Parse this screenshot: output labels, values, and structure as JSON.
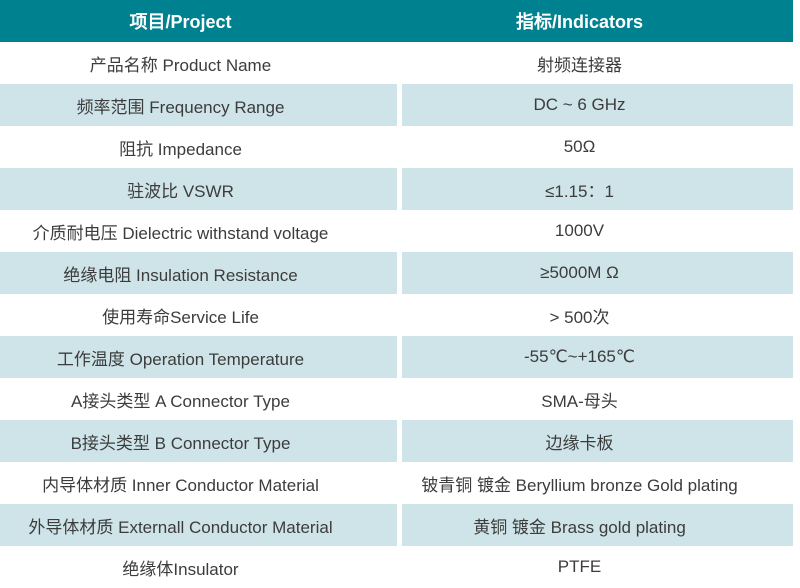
{
  "table_title": "RF connector specification table",
  "header": {
    "project_label": "项目/Project",
    "indicators_label": "指标/Indicators"
  },
  "rows": [
    {
      "project": "产品名称 Product Name",
      "indicator": "射频连接器"
    },
    {
      "project": "频率范围 Frequency Range",
      "indicator": "DC ~ 6 GHz"
    },
    {
      "project": "阻抗 Impedance",
      "indicator": "50Ω"
    },
    {
      "project": "驻波比 VSWR",
      "indicator": "≤1.15：1"
    },
    {
      "project": "介质耐电压 Dielectric withstand voltage",
      "indicator": "1000V"
    },
    {
      "project": "绝缘电阻 Insulation Resistance",
      "indicator": "≥5000M Ω"
    },
    {
      "project": "使用寿命Service Life",
      "indicator": "> 500次"
    },
    {
      "project": "工作温度 Operation Temperature",
      "indicator": "-55℃~+165℃"
    },
    {
      "project": "A接头类型 A Connector Type",
      "indicator": "SMA-母头"
    },
    {
      "project": "B接头类型 B Connector Type",
      "indicator": "边缘卡板"
    },
    {
      "project": "内导体材质 Inner Conductor Material",
      "indicator": "铍青铜 镀金 Beryllium bronze Gold plating"
    },
    {
      "project": "外导体材质 Externall Conductor Material",
      "indicator": "黄铜 镀金 Brass gold plating"
    },
    {
      "project": "绝缘体Insulator",
      "indicator": "PTFE"
    }
  ],
  "colors": {
    "header_bg": "#00818f",
    "header_text": "#ffffff",
    "alt_row_bg": "#cee4e9",
    "row_bg": "#ffffff",
    "body_text": "#3c3c3c"
  }
}
